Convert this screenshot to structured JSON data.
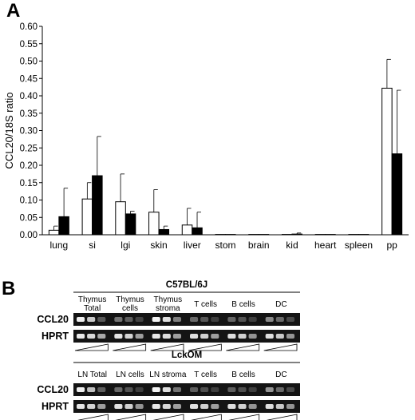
{
  "panel_a": {
    "letter": "A",
    "chart_data": {
      "type": "bar",
      "ylabel": "CCL20/18S ratio",
      "ylim": [
        0,
        0.6
      ],
      "yticks": [
        "0.00",
        "0.05",
        "0.10",
        "0.15",
        "0.20",
        "0.25",
        "0.30",
        "0.35",
        "0.40",
        "0.45",
        "0.50",
        "0.55",
        "0.60"
      ],
      "categories": [
        "lung",
        "si",
        "lgi",
        "skin",
        "liver",
        "stom",
        "brain",
        "kid",
        "heart",
        "spleen",
        "pp"
      ],
      "series": [
        {
          "fill": "#ffffff",
          "values": [
            0.013,
            0.103,
            0.095,
            0.065,
            0.028,
            0.001,
            0.001,
            0.001,
            0.001,
            0.001,
            0.422
          ],
          "errors": [
            0.012,
            0.047,
            0.08,
            0.065,
            0.048,
            0.001,
            0.001,
            0.002,
            0.001,
            0.001,
            0.083
          ]
        },
        {
          "fill": "#000000",
          "values": [
            0.052,
            0.17,
            0.06,
            0.015,
            0.02,
            0.001,
            0.001,
            0.002,
            0.001,
            0.001,
            0.233
          ],
          "errors": [
            0.082,
            0.113,
            0.008,
            0.01,
            0.045,
            0.001,
            0.001,
            0.003,
            0.001,
            0.001,
            0.183
          ]
        }
      ],
      "grid": false,
      "legend": "none"
    }
  },
  "panel_b": {
    "letter": "B",
    "blocks": [
      {
        "strain": "C57BL/6J",
        "groups": [
          {
            "line1": "Thymus",
            "line2": "Total",
            "ccl20": [
              0.92,
              0.75,
              0.22
            ],
            "hprt": [
              0.9,
              0.82,
              0.6
            ]
          },
          {
            "line1": "Thymus",
            "line2": "cells",
            "ccl20": [
              0.35,
              0.25,
              0.12
            ],
            "hprt": [
              0.88,
              0.8,
              0.55
            ]
          },
          {
            "line1": "Thymus",
            "line2": "stroma",
            "ccl20": [
              0.95,
              0.85,
              0.4
            ],
            "hprt": [
              0.9,
              0.85,
              0.55
            ]
          },
          {
            "line1": "T cells",
            "line2": "",
            "ccl20": [
              0.3,
              0.22,
              0.1
            ],
            "hprt": [
              0.85,
              0.78,
              0.55
            ]
          },
          {
            "line1": "B cells",
            "line2": "",
            "ccl20": [
              0.28,
              0.2,
              0.1
            ],
            "hprt": [
              0.85,
              0.78,
              0.5
            ]
          },
          {
            "line1": "DC",
            "line2": "",
            "ccl20": [
              0.45,
              0.3,
              0.15
            ],
            "hprt": [
              0.85,
              0.75,
              0.5
            ]
          }
        ],
        "rows": [
          "CCL20",
          "HPRT"
        ]
      },
      {
        "strain": "LckOM",
        "groups": [
          {
            "line1": "LN Total",
            "line2": "",
            "ccl20": [
              0.92,
              0.7,
              0.25
            ],
            "hprt": [
              0.88,
              0.8,
              0.55
            ]
          },
          {
            "line1": "LN cells",
            "line2": "",
            "ccl20": [
              0.3,
              0.2,
              0.1
            ],
            "hprt": [
              0.86,
              0.78,
              0.5
            ]
          },
          {
            "line1": "LN stroma",
            "line2": "",
            "ccl20": [
              0.95,
              0.85,
              0.35
            ],
            "hprt": [
              0.9,
              0.82,
              0.55
            ]
          },
          {
            "line1": "T cells",
            "line2": "",
            "ccl20": [
              0.25,
              0.18,
              0.1
            ],
            "hprt": [
              0.86,
              0.78,
              0.55
            ]
          },
          {
            "line1": "B cells",
            "line2": "",
            "ccl20": [
              0.25,
              0.18,
              0.1
            ],
            "hprt": [
              0.85,
              0.78,
              0.5
            ]
          },
          {
            "line1": "DC",
            "line2": "",
            "ccl20": [
              0.5,
              0.3,
              0.15
            ],
            "hprt": [
              0.85,
              0.75,
              0.5
            ]
          }
        ],
        "rows": [
          "CCL20",
          "HPRT"
        ]
      }
    ]
  }
}
